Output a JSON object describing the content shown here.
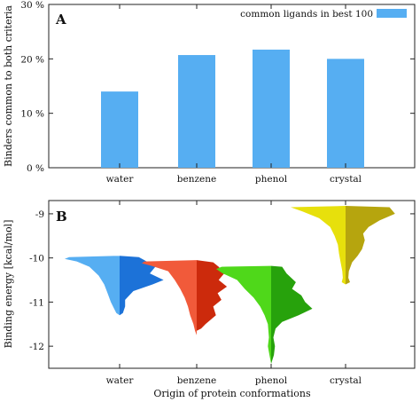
{
  "chart_data": [
    {
      "type": "bar",
      "panel_label": "A",
      "categories": [
        "water",
        "benzene",
        "phenol",
        "crystal"
      ],
      "series": [
        {
          "name": "common ligands in best 100",
          "values": [
            14,
            20.7,
            21.7,
            20
          ],
          "color": "#56aef2"
        }
      ],
      "ylabel": "Binders common to both criteria",
      "ylim": [
        0,
        30
      ],
      "yticks": [
        0,
        10,
        20,
        30
      ],
      "ytick_labels": [
        "0 %",
        "10 %",
        "20 %",
        "30 %"
      ],
      "legend_position": "top-right",
      "grid": false
    },
    {
      "type": "violin",
      "panel_label": "B",
      "categories": [
        "water",
        "benzene",
        "phenol",
        "crystal"
      ],
      "ylabel": "Binding energy [kcal/mol]",
      "xlabel": "Origin of protein conformations",
      "ylim": [
        -12.5,
        -8.7
      ],
      "yticks": [
        -12,
        -11,
        -10,
        -9
      ],
      "ytick_labels": [
        "-12",
        "-11",
        "-10",
        "-9"
      ],
      "grid": false,
      "violins": [
        {
          "category": "water",
          "color_left": "#56aef2",
          "color_right": "#1c72d8",
          "left_profile": [
            [
              -9.95,
              0.0
            ],
            [
              -9.98,
              0.92
            ],
            [
              -10.02,
              1.0
            ],
            [
              -10.08,
              0.78
            ],
            [
              -10.2,
              0.55
            ],
            [
              -10.4,
              0.38
            ],
            [
              -10.6,
              0.28
            ],
            [
              -10.8,
              0.22
            ],
            [
              -11.0,
              0.16
            ],
            [
              -11.15,
              0.1
            ],
            [
              -11.25,
              0.06
            ],
            [
              -11.3,
              0.0
            ]
          ],
          "right_profile": [
            [
              -9.95,
              0.0
            ],
            [
              -9.98,
              0.35
            ],
            [
              -10.05,
              0.45
            ],
            [
              -10.2,
              0.65
            ],
            [
              -10.35,
              0.55
            ],
            [
              -10.5,
              0.8
            ],
            [
              -10.6,
              0.6
            ],
            [
              -10.75,
              0.25
            ],
            [
              -10.95,
              0.1
            ],
            [
              -11.1,
              0.1
            ],
            [
              -11.25,
              0.06
            ],
            [
              -11.3,
              0.0
            ]
          ]
        },
        {
          "category": "benzene",
          "color_left": "#f15a3a",
          "color_right": "#cc2a0c",
          "left_profile": [
            [
              -10.05,
              0.0
            ],
            [
              -10.08,
              0.95
            ],
            [
              -10.12,
              1.0
            ],
            [
              -10.18,
              0.82
            ],
            [
              -10.3,
              0.52
            ],
            [
              -10.5,
              0.4
            ],
            [
              -10.7,
              0.3
            ],
            [
              -10.9,
              0.22
            ],
            [
              -11.1,
              0.16
            ],
            [
              -11.3,
              0.12
            ],
            [
              -11.5,
              0.06
            ],
            [
              -11.65,
              0.03
            ],
            [
              -11.75,
              0.0
            ]
          ],
          "right_profile": [
            [
              -10.05,
              0.0
            ],
            [
              -10.1,
              0.3
            ],
            [
              -10.2,
              0.4
            ],
            [
              -10.35,
              0.5
            ],
            [
              -10.5,
              0.4
            ],
            [
              -10.65,
              0.55
            ],
            [
              -10.8,
              0.38
            ],
            [
              -10.95,
              0.45
            ],
            [
              -11.1,
              0.3
            ],
            [
              -11.3,
              0.35
            ],
            [
              -11.5,
              0.16
            ],
            [
              -11.6,
              0.08
            ],
            [
              -11.65,
              0.0
            ]
          ]
        },
        {
          "category": "phenol",
          "color_left": "#4fd81a",
          "color_right": "#27a20c",
          "left_profile": [
            [
              -10.18,
              0.0
            ],
            [
              -10.2,
              0.9
            ],
            [
              -10.25,
              1.0
            ],
            [
              -10.35,
              0.88
            ],
            [
              -10.5,
              0.62
            ],
            [
              -10.7,
              0.48
            ],
            [
              -10.9,
              0.32
            ],
            [
              -11.1,
              0.2
            ],
            [
              -11.3,
              0.12
            ],
            [
              -11.5,
              0.06
            ],
            [
              -11.8,
              0.04
            ],
            [
              -12.0,
              0.06
            ],
            [
              -12.2,
              0.03
            ],
            [
              -12.4,
              0.0
            ]
          ],
          "right_profile": [
            [
              -10.18,
              0.0
            ],
            [
              -10.2,
              0.2
            ],
            [
              -10.35,
              0.28
            ],
            [
              -10.55,
              0.45
            ],
            [
              -10.7,
              0.38
            ],
            [
              -10.85,
              0.55
            ],
            [
              -11.0,
              0.62
            ],
            [
              -11.15,
              0.75
            ],
            [
              -11.3,
              0.5
            ],
            [
              -11.45,
              0.2
            ],
            [
              -11.6,
              0.08
            ],
            [
              -11.8,
              0.04
            ],
            [
              -12.0,
              0.07
            ],
            [
              -12.2,
              0.05
            ],
            [
              -12.4,
              0.0
            ]
          ]
        },
        {
          "category": "crystal",
          "color_left": "#e7e00c",
          "color_right": "#b6a50e",
          "left_profile": [
            [
              -8.82,
              0.0
            ],
            [
              -8.85,
              1.0
            ],
            [
              -8.95,
              0.78
            ],
            [
              -9.1,
              0.48
            ],
            [
              -9.3,
              0.28
            ],
            [
              -9.5,
              0.2
            ],
            [
              -9.7,
              0.14
            ],
            [
              -9.9,
              0.12
            ],
            [
              -10.1,
              0.09
            ],
            [
              -10.3,
              0.06
            ],
            [
              -10.45,
              0.05
            ],
            [
              -10.55,
              0.07
            ],
            [
              -10.6,
              0.0
            ]
          ],
          "right_profile": [
            [
              -8.82,
              0.0
            ],
            [
              -8.85,
              0.8
            ],
            [
              -9.0,
              0.9
            ],
            [
              -9.15,
              0.62
            ],
            [
              -9.3,
              0.42
            ],
            [
              -9.45,
              0.32
            ],
            [
              -9.6,
              0.35
            ],
            [
              -9.8,
              0.3
            ],
            [
              -9.95,
              0.22
            ],
            [
              -10.1,
              0.12
            ],
            [
              -10.3,
              0.06
            ],
            [
              -10.45,
              0.05
            ],
            [
              -10.55,
              0.08
            ],
            [
              -10.6,
              0.0
            ]
          ]
        }
      ]
    }
  ]
}
